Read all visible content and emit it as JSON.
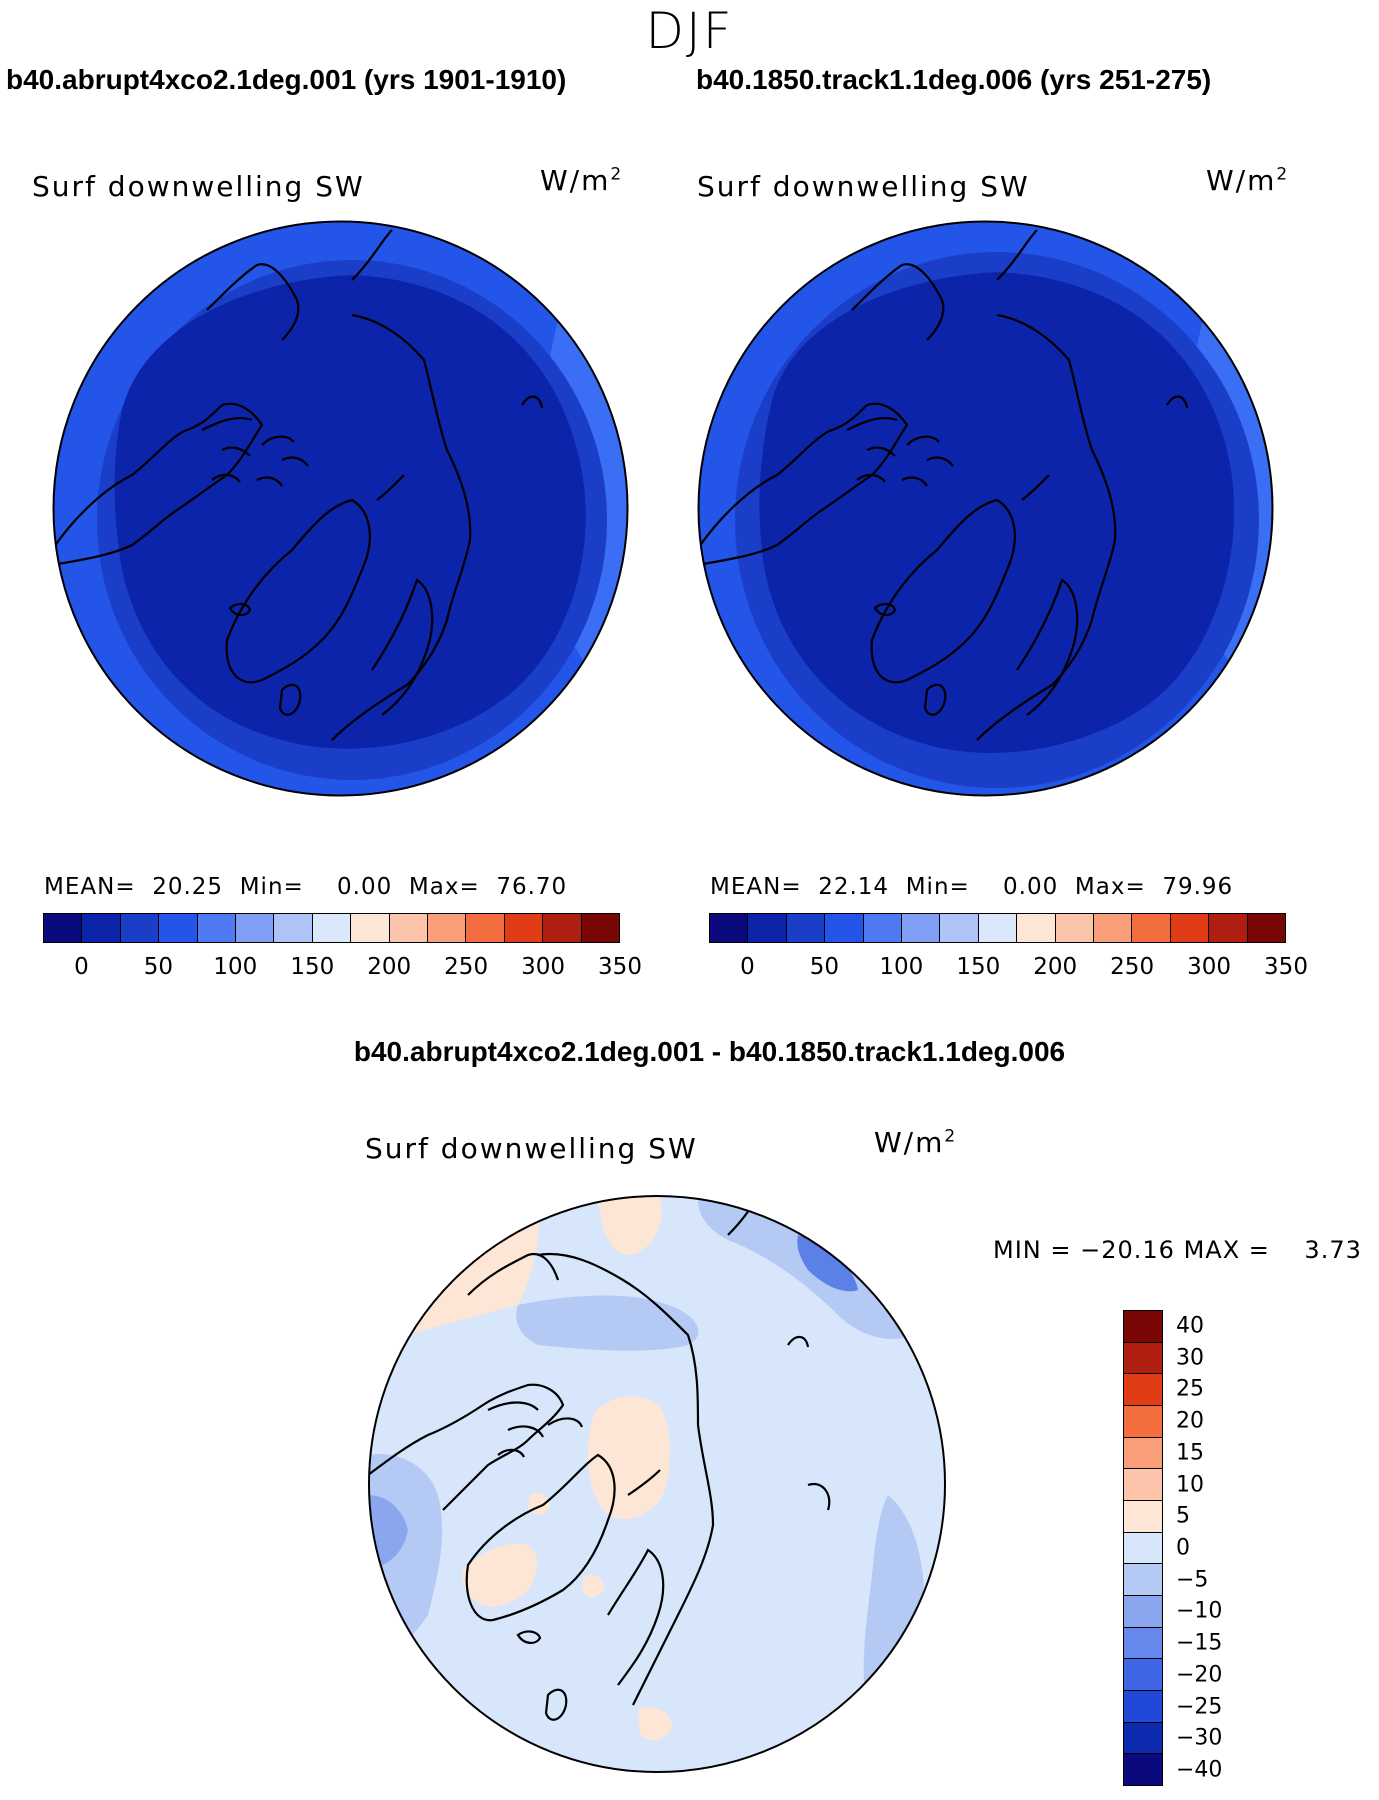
{
  "page": {
    "season": "DJF"
  },
  "panels": [
    {
      "case": "b40.abrupt4xco2.1deg.001 (yrs 1901-1910)",
      "field": "Surf downwelling SW",
      "units_base": "W/m",
      "units_exp": "2",
      "stats": {
        "mean_label": "MEAN=",
        "mean": "20.25",
        "min_label": "Min=",
        "min": "0.00",
        "max_label": "Max=",
        "max": "76.70"
      },
      "colors": {
        "outer": "#2255e8",
        "mid": "#1a3ec8",
        "inner": "#0c24aa",
        "rim": "#3a6ef4"
      }
    },
    {
      "case": "b40.1850.track1.1deg.006 (yrs 251-275)",
      "field": "Surf downwelling SW",
      "units_base": "W/m",
      "units_exp": "2",
      "stats": {
        "mean_label": "MEAN=",
        "mean": "22.14",
        "min_label": "Min=",
        "min": "0.00",
        "max_label": "Max=",
        "max": "79.96"
      },
      "colors": {
        "outer": "#2255e8",
        "mid": "#1a3ec8",
        "inner": "#0c24aa",
        "rim": "#3a6ef4"
      }
    }
  ],
  "colorbar_top": {
    "colors": [
      "#0a0a7e",
      "#0c24aa",
      "#1a3ec8",
      "#2255e8",
      "#4e7af2",
      "#7f9ef5",
      "#aec3f7",
      "#dbe7fb",
      "#fde6d6",
      "#fcc5ab",
      "#f99e78",
      "#f46d3f",
      "#e23c17",
      "#b01e12",
      "#7a0606"
    ],
    "ticks": [
      "0",
      "50",
      "100",
      "150",
      "200",
      "250",
      "300",
      "350"
    ]
  },
  "difference": {
    "title": "b40.abrupt4xco2.1deg.001 - b40.1850.track1.1deg.006",
    "field": "Surf downwelling SW",
    "units_base": "W/m",
    "units_exp": "2",
    "minmax": {
      "min_label": "MIN =",
      "min": "−20.16",
      "max_label": "MAX =",
      "max": "3.73"
    },
    "colors": {
      "base": "#d7e6fb",
      "pos": "#fde6d6",
      "neg1": "#b5c9f5",
      "neg2": "#8aa6ef",
      "neg3": "#5b80e6"
    }
  },
  "colorbar_diff": {
    "colors": [
      "#7a0606",
      "#b01e12",
      "#e23c17",
      "#f46d3f",
      "#f99e78",
      "#fcc5ab",
      "#fde6d6",
      "#d7e6fb",
      "#b5c9f5",
      "#8aa6ef",
      "#6688ec",
      "#3e66e6",
      "#2248d8",
      "#0c2ab0",
      "#0a0a7e"
    ],
    "ticks": [
      "40",
      "30",
      "25",
      "20",
      "15",
      "10",
      "5",
      "0",
      "−5",
      "−10",
      "−15",
      "−20",
      "−25",
      "−30",
      "−40"
    ]
  }
}
